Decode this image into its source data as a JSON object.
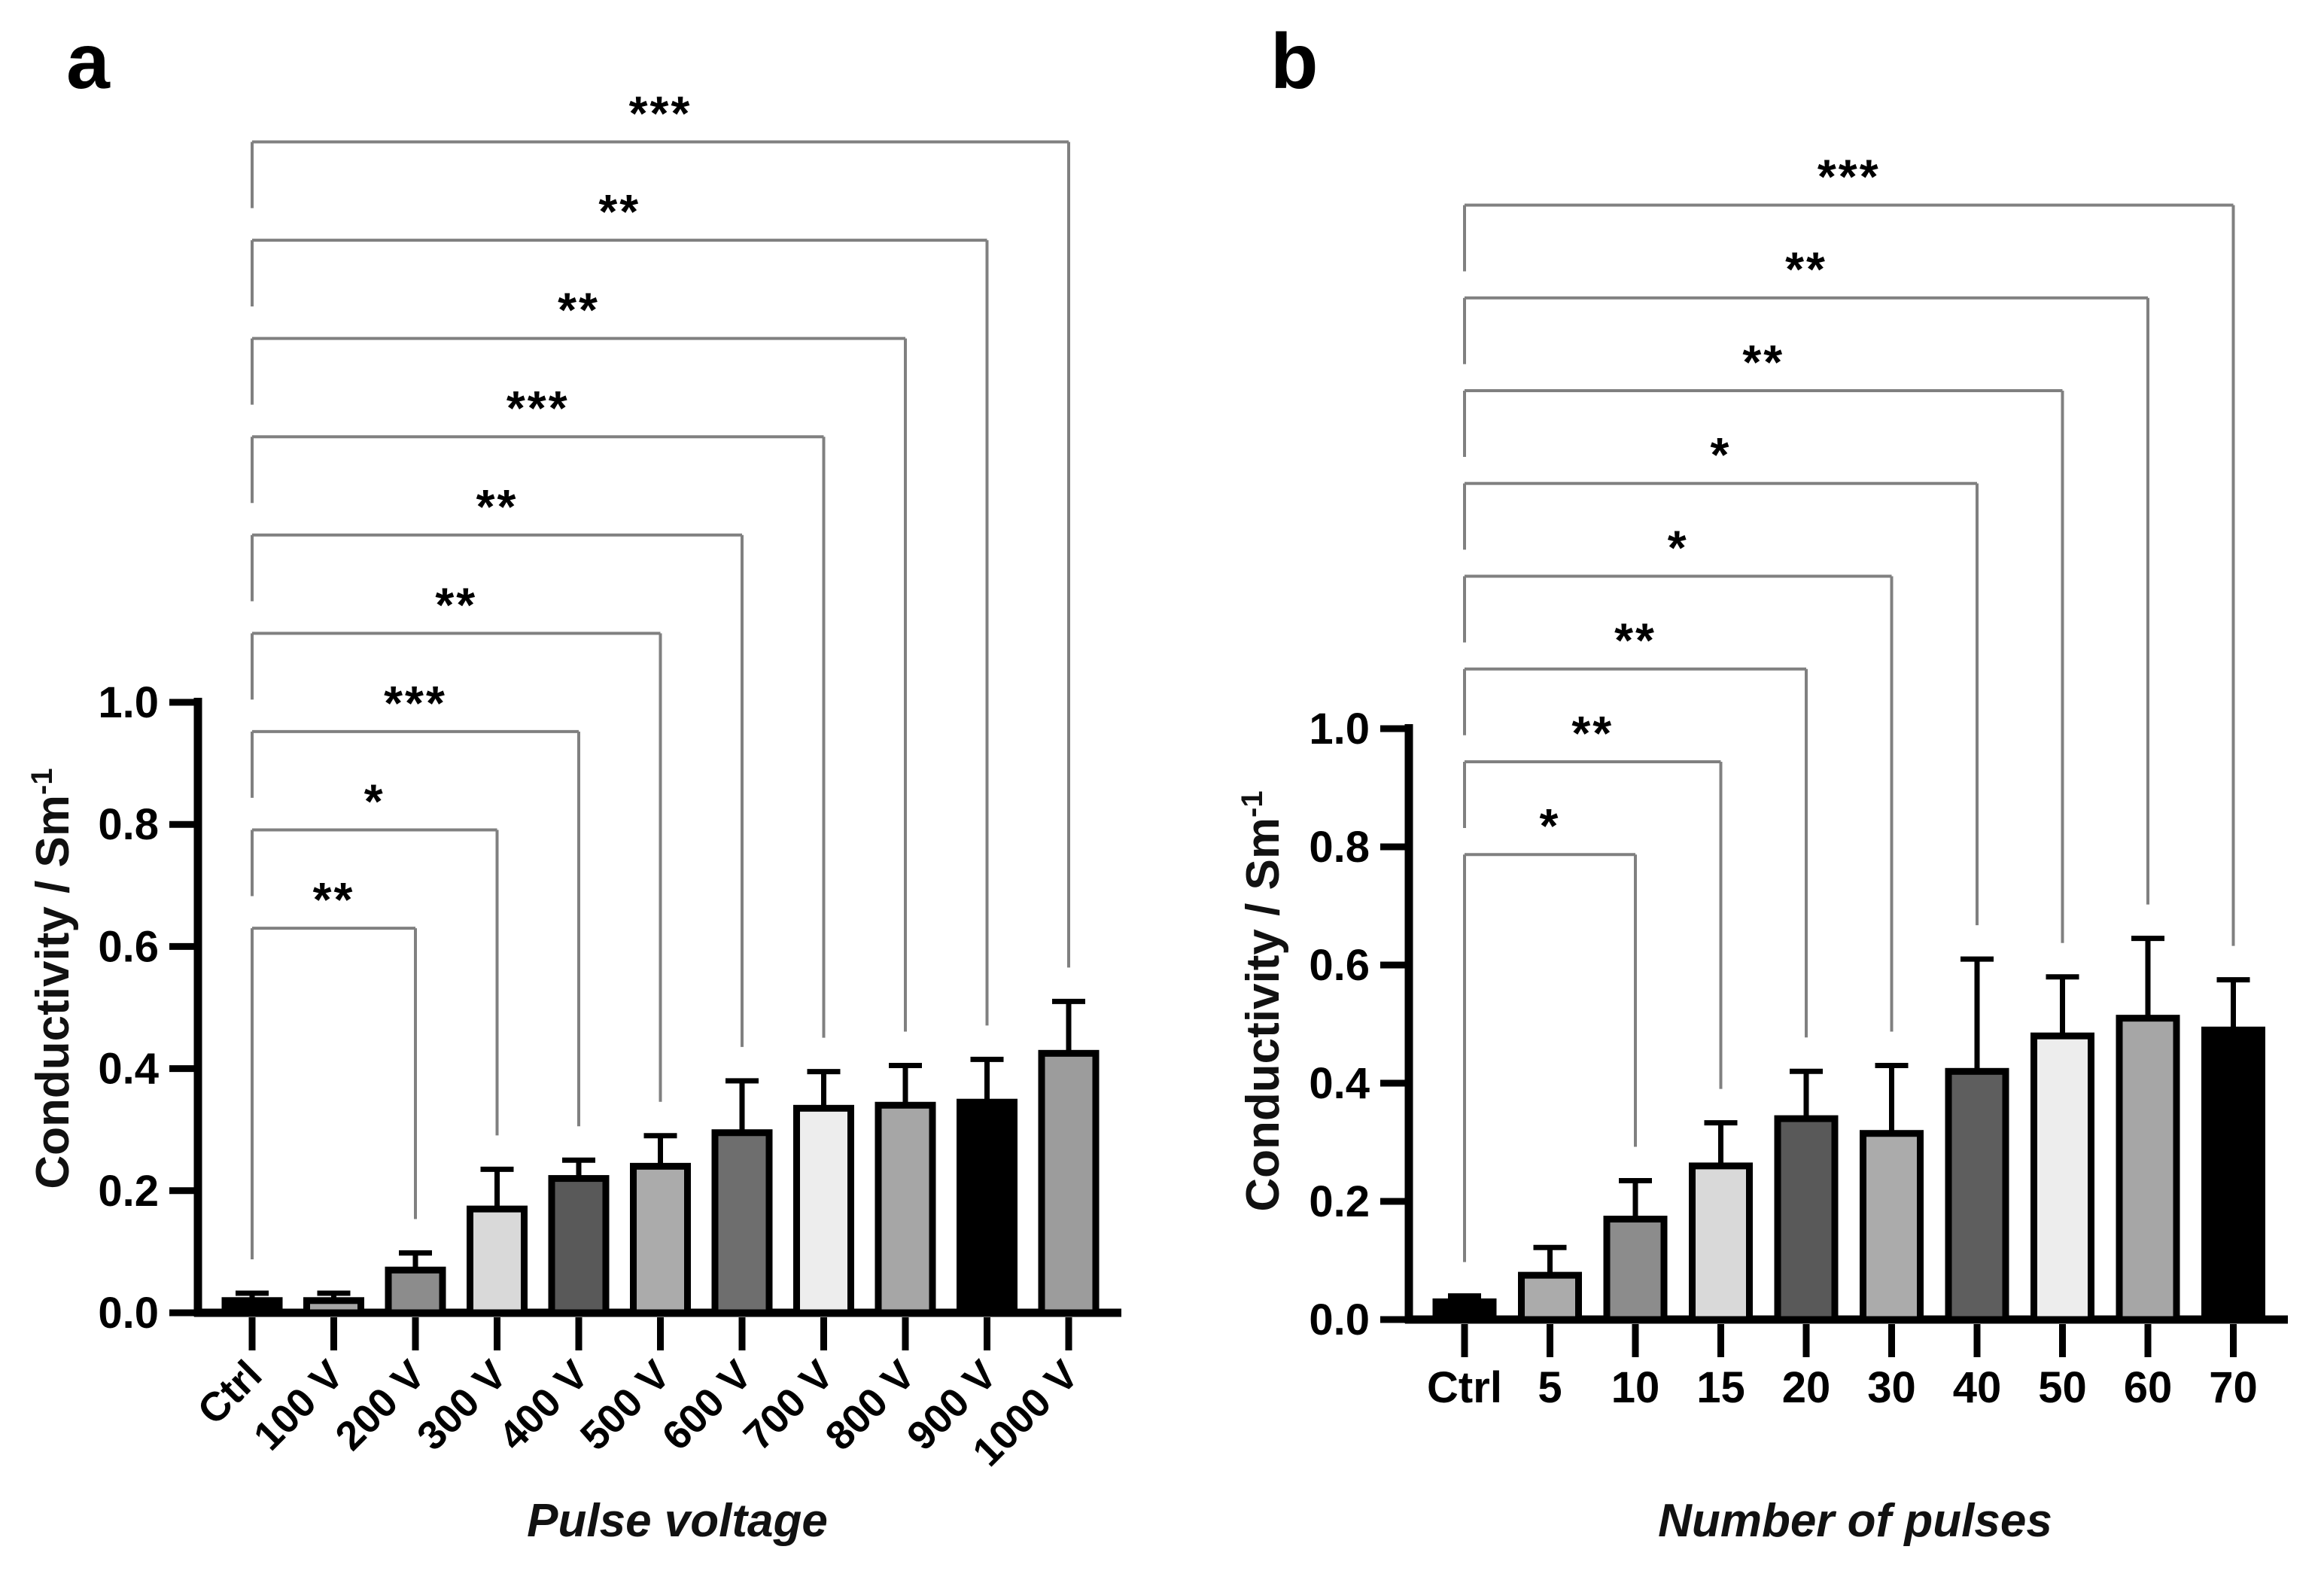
{
  "figure": {
    "background": "#ffffff",
    "panels": [
      {
        "label": "a"
      },
      {
        "label": "b"
      }
    ]
  },
  "chart_data": [
    {
      "type": "bar",
      "panel": "a",
      "xlabel": "Pulse voltage",
      "ylabel_base": "Conductivity / Sm",
      "ylabel_exponent": "-1",
      "ylim": [
        0.0,
        1.0
      ],
      "yticks": [
        "0.0",
        "0.2",
        "0.4",
        "0.6",
        "0.8",
        "1.0"
      ],
      "grid": "off",
      "legend": "none",
      "categories": [
        "Ctrl",
        "100 V",
        "200 V",
        "300 V",
        "400 V",
        "500 V",
        "600 V",
        "700 V",
        "800 V",
        "900 V",
        "1000 V"
      ],
      "values": [
        0.02,
        0.02,
        0.07,
        0.17,
        0.22,
        0.24,
        0.295,
        0.335,
        0.34,
        0.345,
        0.425
      ],
      "errors_plus": [
        0.012,
        0.012,
        0.028,
        0.065,
        0.03,
        0.05,
        0.085,
        0.06,
        0.065,
        0.07,
        0.085
      ],
      "bar_colors": [
        "#000000",
        "#a6a6a6",
        "#8c8c8c",
        "#d9d9d9",
        "#595959",
        "#ababab",
        "#6e6e6e",
        "#ededed",
        "#a6a6a6",
        "#000000",
        "#9c9c9c"
      ],
      "bar_border_color": "#000000",
      "significance_brackets": [
        {
          "from": "Ctrl",
          "to": "200 V",
          "label": "**"
        },
        {
          "from": "Ctrl",
          "to": "300 V",
          "label": "*"
        },
        {
          "from": "Ctrl",
          "to": "400 V",
          "label": "***"
        },
        {
          "from": "Ctrl",
          "to": "500 V",
          "label": "**"
        },
        {
          "from": "Ctrl",
          "to": "600 V",
          "label": "**"
        },
        {
          "from": "Ctrl",
          "to": "700 V",
          "label": "***"
        },
        {
          "from": "Ctrl",
          "to": "800 V",
          "label": "**"
        },
        {
          "from": "Ctrl",
          "to": "900 V",
          "label": "**"
        },
        {
          "from": "Ctrl",
          "to": "1000 V",
          "label": "***"
        }
      ],
      "bracket_color": "#808080"
    },
    {
      "type": "bar",
      "panel": "b",
      "xlabel": "Number of pulses",
      "ylabel_base": "Conductivity / Sm",
      "ylabel_exponent": "-1",
      "ylim": [
        0.0,
        1.0
      ],
      "yticks": [
        "0.0",
        "0.2",
        "0.4",
        "0.6",
        "0.8",
        "1.0"
      ],
      "grid": "off",
      "legend": "none",
      "categories": [
        "Ctrl",
        "5",
        "10",
        "15",
        "20",
        "30",
        "40",
        "50",
        "60",
        "70"
      ],
      "values": [
        0.03,
        0.075,
        0.17,
        0.26,
        0.34,
        0.315,
        0.42,
        0.48,
        0.51,
        0.49
      ],
      "errors_plus": [
        0.01,
        0.047,
        0.065,
        0.073,
        0.08,
        0.115,
        0.19,
        0.1,
        0.135,
        0.085
      ],
      "bar_colors": [
        "#000000",
        "#ababab",
        "#8c8c8c",
        "#d9d9d9",
        "#595959",
        "#ababab",
        "#5e5e5e",
        "#ededed",
        "#a6a6a6",
        "#000000"
      ],
      "bar_border_color": "#000000",
      "significance_brackets": [
        {
          "from": "Ctrl",
          "to": "10",
          "label": "*"
        },
        {
          "from": "Ctrl",
          "to": "15",
          "label": "**"
        },
        {
          "from": "Ctrl",
          "to": "20",
          "label": "**"
        },
        {
          "from": "Ctrl",
          "to": "30",
          "label": "*"
        },
        {
          "from": "Ctrl",
          "to": "40",
          "label": "*"
        },
        {
          "from": "Ctrl",
          "to": "50",
          "label": "**"
        },
        {
          "from": "Ctrl",
          "to": "60",
          "label": "**"
        },
        {
          "from": "Ctrl",
          "to": "70",
          "label": "***"
        }
      ],
      "bracket_color": "#808080"
    }
  ]
}
